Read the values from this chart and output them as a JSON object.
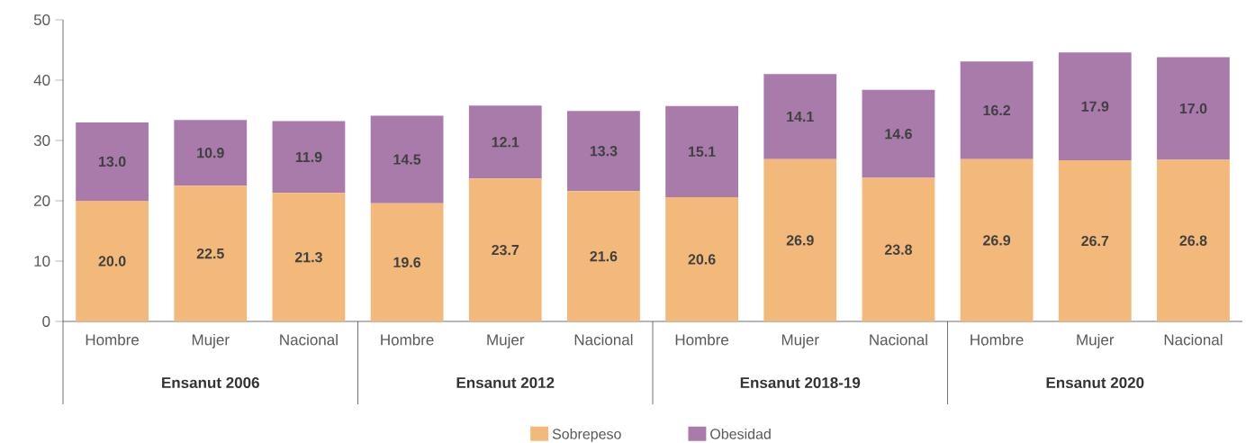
{
  "chart_data": {
    "type": "bar",
    "stacked": true,
    "legend": "bottom",
    "categories": [
      "Hombre",
      "Mujer",
      "Nacional",
      "Hombre",
      "Mujer",
      "Nacional",
      "Hombre",
      "Mujer",
      "Nacional",
      "Hombre",
      "Mujer",
      "Nacional"
    ],
    "series": [
      {
        "name": "Sobrepeso",
        "color": "#f2b97a",
        "values": [
          20.0,
          22.5,
          21.3,
          19.6,
          23.7,
          21.6,
          20.6,
          26.9,
          23.8,
          26.9,
          26.7,
          26.8
        ],
        "value_labels": [
          "20.0",
          "22.5",
          "21.3",
          "19.6",
          "23.7",
          "21.6",
          "20.6",
          "26.9",
          "23.8",
          "26.9",
          "26.7",
          "26.8"
        ]
      },
      {
        "name": "Obesidad",
        "color": "#a87bab",
        "values": [
          13.0,
          10.9,
          11.9,
          14.5,
          12.1,
          13.3,
          15.1,
          14.1,
          14.6,
          16.2,
          17.9,
          17.0
        ],
        "value_labels": [
          "13.0",
          "10.9",
          "11.9",
          "14.5",
          "12.1",
          "13.3",
          "15.1",
          "14.1",
          "14.6",
          "16.2",
          "17.9",
          "17.0"
        ]
      }
    ],
    "annotations": [
      "Ensanut 2006",
      "Ensanut 2012",
      "Ensanut 2018-19",
      "Ensanut 2020"
    ],
    "ylim": [
      0,
      50
    ],
    "yticks": [
      0,
      10,
      20,
      30,
      40,
      50
    ]
  }
}
